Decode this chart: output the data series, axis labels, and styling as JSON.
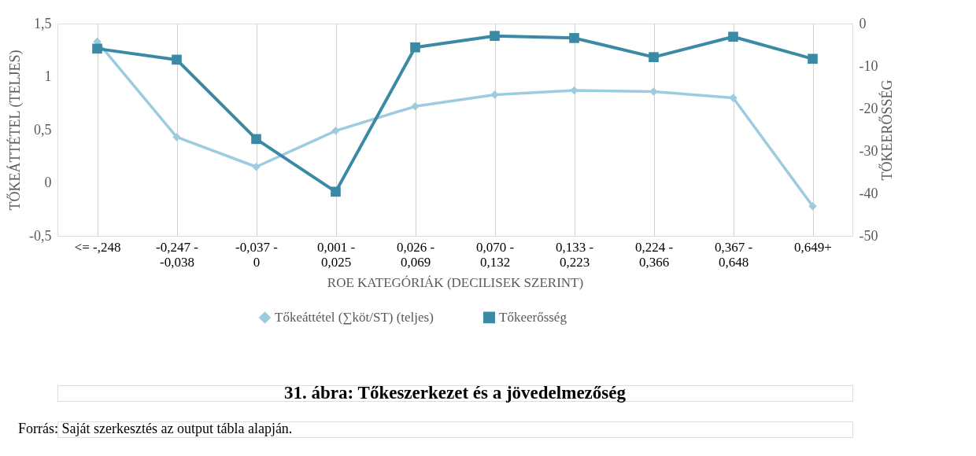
{
  "chart_data": {
    "type": "line",
    "title": "31. ábra: Tőkeszerkezet és a jövedelmezőség",
    "xlabel": "ROE KATEGÓRIÁK (DECILISEK SZERINT)",
    "ylabel": "TŐKEÁTTÉTEL (TELJES)",
    "y2label": "TŐKEERŐSSÉG",
    "annotations": [
      "Forrás: Saját szerkesztés az output tábla alapján."
    ],
    "categories": [
      "<= -,248",
      "-0,247 - -0,038",
      "-0,037 - 0",
      "0,001 - 0,025",
      "0,026 - 0,069",
      "0,070 - 0,132",
      "0,133 - 0,223",
      "0,224 - 0,366",
      "0,367 - 0,648",
      "0,649+"
    ],
    "series": [
      {
        "name": "Tőkeáttétel (∑köt/ST) (teljes)",
        "color": "#9dcbe0",
        "marker": "diamond",
        "values": [
          1.33,
          0.43,
          0.15,
          0.49,
          0.72,
          0.83,
          0.87,
          0.86,
          0.8,
          -0.22
        ]
      },
      {
        "name": "Tőkeerősség",
        "color": "#3a8aa5",
        "marker": "square",
        "axis": "y2",
        "values": [
          -5.9,
          -8.5,
          -27.2,
          -39.6,
          -5.6,
          -2.9,
          -3.4,
          -7.9,
          -3.1,
          -8.3
        ]
      }
    ],
    "ylim": [
      -0.5,
      1.5
    ],
    "yticks": [
      {
        "value": -0.5,
        "label": "-0,5"
      },
      0,
      {
        "value": 0.5,
        "label": "0,5"
      },
      1,
      {
        "value": 1.5,
        "label": "1,5"
      }
    ],
    "y2lim": [
      -50,
      0
    ],
    "y2ticks": [
      -50,
      -40,
      -30,
      -20,
      -10,
      0
    ],
    "grid": "x",
    "legend": "bottom"
  }
}
